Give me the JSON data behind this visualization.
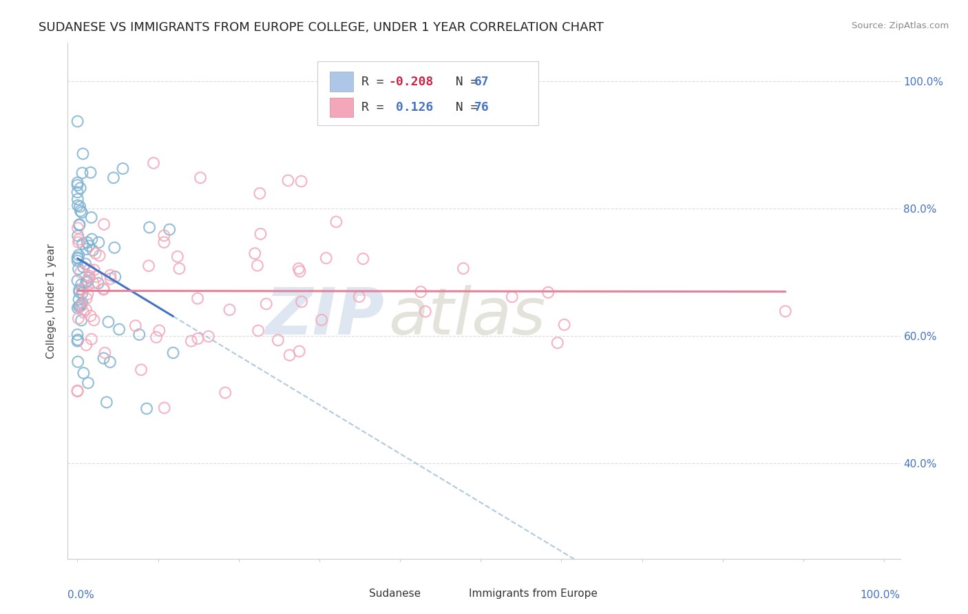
{
  "title": "SUDANESE VS IMMIGRANTS FROM EUROPE COLLEGE, UNDER 1 YEAR CORRELATION CHART",
  "source": "Source: ZipAtlas.com",
  "ylabel": "College, Under 1 year",
  "yaxis_ticks": [
    0.4,
    0.6,
    0.8,
    1.0
  ],
  "yaxis_labels": [
    "40.0%",
    "60.0%",
    "80.0%",
    "100.0%"
  ],
  "legend_R1": "-0.208",
  "legend_N1": "67",
  "legend_R2": "0.126",
  "legend_N2": "76",
  "sudanese_color": "#7fb3d3",
  "europe_color": "#f4a7b9",
  "sudanese_edge": "#5a9ec0",
  "europe_edge": "#e8899a",
  "sudanese_trend_color": "#4472c4",
  "europe_trend_color": "#e87f9a",
  "dashed_line_color": "#a8c4d8",
  "background_color": "#ffffff",
  "grid_color": "#d8d8d8",
  "legend_box_color": "#aec6e8",
  "legend_pink_color": "#f4a7b9",
  "R_text_color": "#e05060",
  "N_text_color": "#4472c4",
  "yaxis_label_color": "#4472c4",
  "xaxis_label_color": "#4472c4",
  "watermark_zip_color": "#c8d8e8",
  "watermark_atlas_color": "#c8c8b8"
}
